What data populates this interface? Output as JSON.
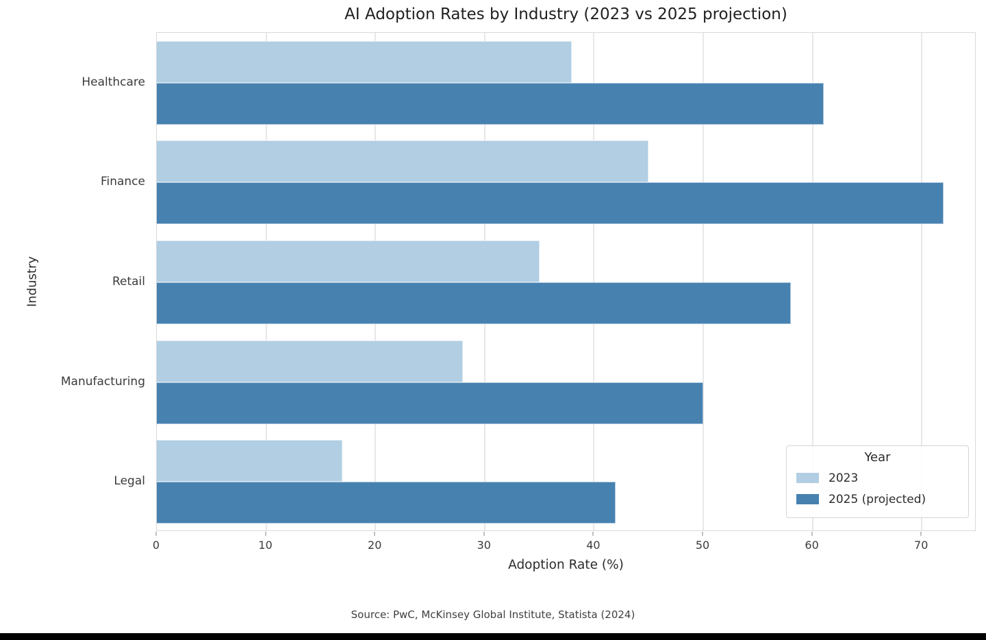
{
  "page": {
    "background": "#ffffff",
    "bottom_bar_color": "#000000"
  },
  "chart_data": {
    "type": "bar",
    "orientation": "horizontal",
    "title": "AI Adoption Rates by Industry (2023 vs 2025 projection)",
    "categories": [
      "Healthcare",
      "Finance",
      "Retail",
      "Manufacturing",
      "Legal"
    ],
    "series": [
      {
        "name": "2023",
        "color": "#b1cee3",
        "values": [
          38,
          45,
          35,
          28,
          17
        ]
      },
      {
        "name": "2025 (projected)",
        "color": "#4781b0",
        "values": [
          61,
          72,
          58,
          50,
          42
        ]
      }
    ],
    "xlabel": "Adoption Rate (%)",
    "ylabel": "Industry",
    "xlim": [
      0,
      75
    ],
    "xticks": [
      0,
      10,
      20,
      30,
      40,
      50,
      60,
      70
    ],
    "grid": true,
    "legend": {
      "title": "Year",
      "position": "lower right"
    },
    "source_note": "Source: PwC, McKinsey Global Institute, Statista (2024)"
  }
}
